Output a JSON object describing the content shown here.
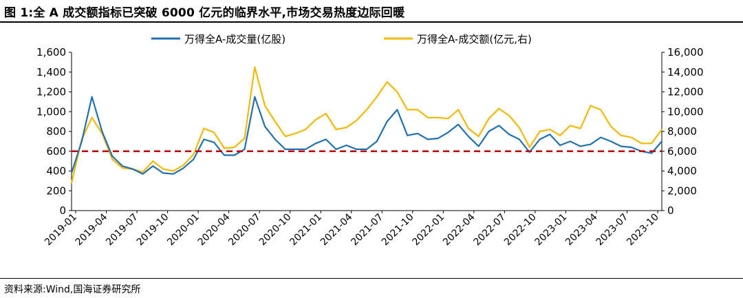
{
  "title": "图 1:全 A 成交额指标已突破 6000 亿元的临界水平,市场交易热度边际回暖",
  "source": "资料来源:Wind,国海证券研究所",
  "chart_data": {
    "type": "line",
    "title": "",
    "xlabel": "",
    "ylabel_left": "",
    "ylabel_right": "",
    "legend_placement": "top",
    "grid": false,
    "x_ticks": [
      "2019-01",
      "2019-04",
      "2019-07",
      "2019-10",
      "2020-01",
      "2020-04",
      "2020-07",
      "2020-10",
      "2021-01",
      "2021-04",
      "2021-07",
      "2021-10",
      "2022-01",
      "2022-04",
      "2022-07",
      "2022-10",
      "2023-01",
      "2023-04",
      "2023-07",
      "2023-10"
    ],
    "y_left_ticks": [
      "0",
      "200",
      "400",
      "600",
      "800",
      "1,000",
      "1,200",
      "1,400",
      "1,600"
    ],
    "y_right_ticks": [
      "0",
      "2,000",
      "4,000",
      "6,000",
      "8,000",
      "10,000",
      "12,000",
      "14,000",
      "16,000"
    ],
    "ylim_left": [
      0,
      1600
    ],
    "ylim_right": [
      0,
      16000
    ],
    "x": [
      "2019-01",
      "2019-02",
      "2019-03",
      "2019-04",
      "2019-05",
      "2019-06",
      "2019-07",
      "2019-08",
      "2019-09",
      "2019-10",
      "2019-11",
      "2019-12",
      "2020-01",
      "2020-02",
      "2020-03",
      "2020-04",
      "2020-05",
      "2020-06",
      "2020-07",
      "2020-08",
      "2020-09",
      "2020-10",
      "2020-11",
      "2020-12",
      "2021-01",
      "2021-02",
      "2021-03",
      "2021-04",
      "2021-05",
      "2021-06",
      "2021-07",
      "2021-08",
      "2021-09",
      "2021-10",
      "2021-11",
      "2021-12",
      "2022-01",
      "2022-02",
      "2022-03",
      "2022-04",
      "2022-05",
      "2022-06",
      "2022-07",
      "2022-08",
      "2022-09",
      "2022-10",
      "2022-11",
      "2022-12",
      "2023-01",
      "2023-02",
      "2023-03",
      "2023-04",
      "2023-05",
      "2023-06",
      "2023-07",
      "2023-08",
      "2023-09",
      "2023-10",
      "2023-11"
    ],
    "series": [
      {
        "name": "万得全A-成交量(亿股)",
        "axis": "left",
        "color": "#1f6fb4",
        "values": [
          380,
          700,
          1150,
          800,
          550,
          450,
          420,
          370,
          450,
          380,
          370,
          430,
          520,
          720,
          690,
          560,
          560,
          620,
          1150,
          850,
          720,
          620,
          620,
          620,
          680,
          720,
          620,
          660,
          620,
          620,
          700,
          900,
          1020,
          760,
          780,
          720,
          730,
          790,
          870,
          750,
          650,
          800,
          860,
          770,
          720,
          590,
          720,
          770,
          660,
          700,
          650,
          670,
          740,
          700,
          650,
          640,
          600,
          580,
          700
        ]
      },
      {
        "name": "万得全A-成交额(亿元,右)",
        "axis": "right",
        "color": "#f5b800",
        "values": [
          2800,
          7200,
          9400,
          7800,
          5200,
          4300,
          4200,
          3900,
          5000,
          4200,
          4000,
          4600,
          5700,
          8300,
          7900,
          6300,
          6400,
          7300,
          14500,
          10600,
          9000,
          7500,
          7800,
          8200,
          9200,
          9800,
          8200,
          8400,
          9100,
          10200,
          11500,
          13000,
          12000,
          10200,
          10200,
          9400,
          9400,
          9300,
          10200,
          8300,
          7500,
          9300,
          10300,
          9600,
          8400,
          6400,
          8000,
          8200,
          7600,
          8600,
          8300,
          10600,
          10200,
          8500,
          7600,
          7400,
          6800,
          6800,
          8200
        ]
      }
    ],
    "reference_line": {
      "value": 600,
      "axis": "left",
      "color": "#c00000",
      "style": "dashed"
    }
  }
}
